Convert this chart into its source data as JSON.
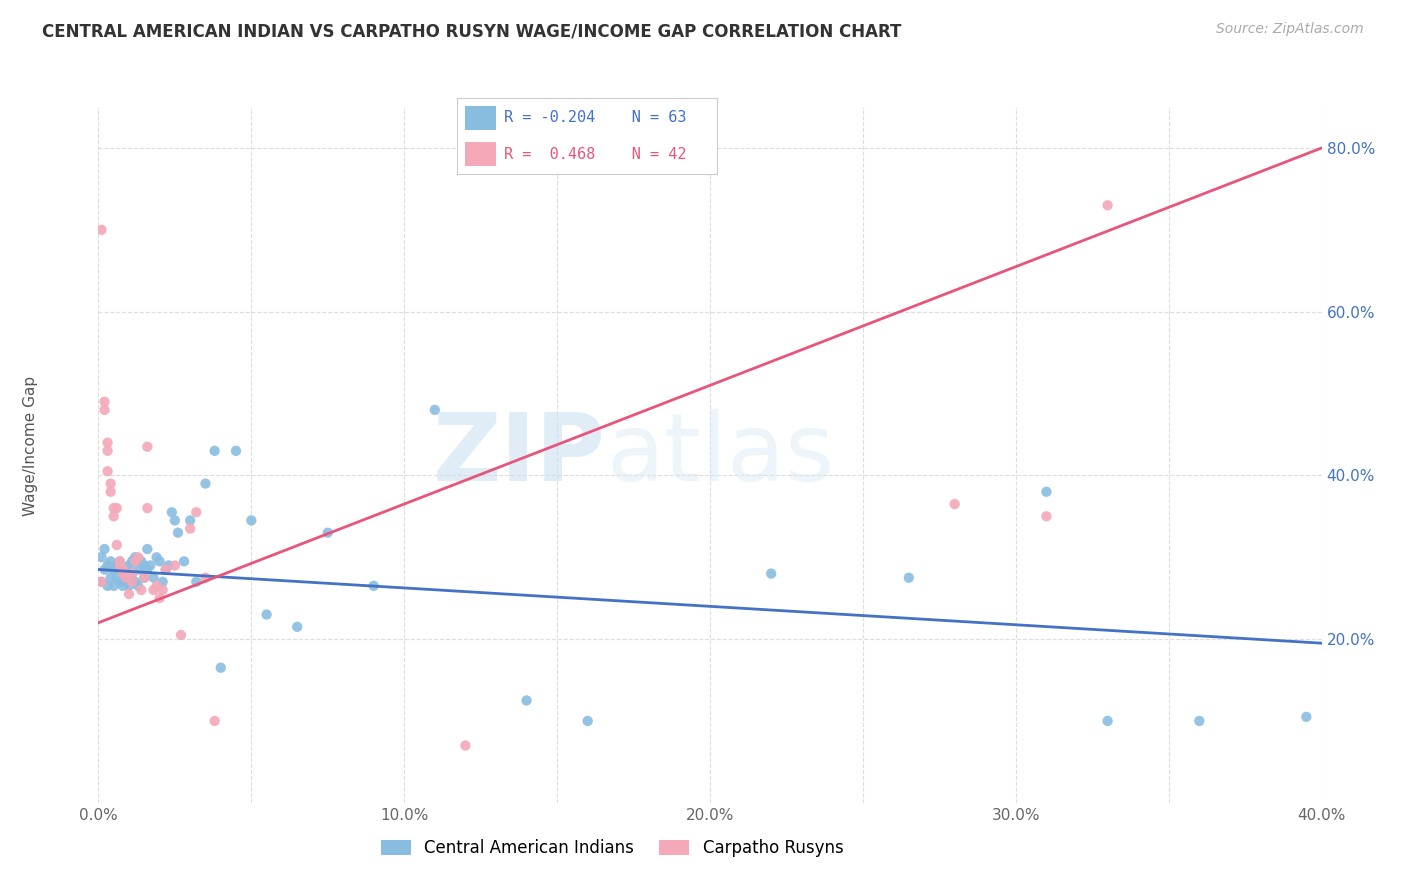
{
  "title": "CENTRAL AMERICAN INDIAN VS CARPATHO RUSYN WAGE/INCOME GAP CORRELATION CHART",
  "source": "Source: ZipAtlas.com",
  "ylabel": "Wage/Income Gap",
  "xlim": [
    0.0,
    0.4
  ],
  "ylim": [
    0.0,
    0.85
  ],
  "ytick_right_vals": [
    0.2,
    0.4,
    0.6,
    0.8
  ],
  "blue_color": "#89bde0",
  "pink_color": "#f4a8b8",
  "blue_line_color": "#4472c4",
  "pink_line_color": "#e8557a",
  "R_blue": -0.204,
  "N_blue": 63,
  "R_pink": 0.468,
  "N_pink": 42,
  "legend_labels": [
    "Central American Indians",
    "Carpatho Rusyns"
  ],
  "watermark_zip": "ZIP",
  "watermark_atlas": "atlas",
  "background_color": "#ffffff",
  "blue_line_x0": 0.0,
  "blue_line_y0": 0.285,
  "blue_line_x1": 0.4,
  "blue_line_y1": 0.195,
  "pink_line_x0": 0.0,
  "pink_line_y0": 0.22,
  "pink_line_x1": 0.4,
  "pink_line_y1": 0.8,
  "blue_scatter_x": [
    0.001,
    0.001,
    0.002,
    0.002,
    0.003,
    0.003,
    0.004,
    0.004,
    0.005,
    0.005,
    0.006,
    0.006,
    0.007,
    0.007,
    0.007,
    0.008,
    0.008,
    0.009,
    0.009,
    0.01,
    0.01,
    0.011,
    0.011,
    0.012,
    0.012,
    0.013,
    0.013,
    0.014,
    0.015,
    0.015,
    0.016,
    0.016,
    0.017,
    0.018,
    0.019,
    0.02,
    0.021,
    0.022,
    0.023,
    0.024,
    0.025,
    0.026,
    0.028,
    0.03,
    0.032,
    0.035,
    0.038,
    0.04,
    0.045,
    0.05,
    0.055,
    0.065,
    0.075,
    0.09,
    0.11,
    0.14,
    0.16,
    0.22,
    0.265,
    0.31,
    0.33,
    0.36,
    0.395
  ],
  "blue_scatter_y": [
    0.3,
    0.27,
    0.31,
    0.285,
    0.29,
    0.265,
    0.295,
    0.275,
    0.285,
    0.265,
    0.29,
    0.275,
    0.285,
    0.27,
    0.295,
    0.28,
    0.265,
    0.285,
    0.27,
    0.29,
    0.265,
    0.295,
    0.28,
    0.3,
    0.27,
    0.285,
    0.265,
    0.295,
    0.29,
    0.275,
    0.31,
    0.285,
    0.29,
    0.275,
    0.3,
    0.295,
    0.27,
    0.285,
    0.29,
    0.355,
    0.345,
    0.33,
    0.295,
    0.345,
    0.27,
    0.39,
    0.43,
    0.165,
    0.43,
    0.345,
    0.23,
    0.215,
    0.33,
    0.265,
    0.48,
    0.125,
    0.1,
    0.28,
    0.275,
    0.38,
    0.1,
    0.1,
    0.105
  ],
  "pink_scatter_x": [
    0.001,
    0.001,
    0.002,
    0.002,
    0.003,
    0.003,
    0.003,
    0.004,
    0.004,
    0.005,
    0.005,
    0.006,
    0.006,
    0.007,
    0.007,
    0.008,
    0.008,
    0.009,
    0.01,
    0.011,
    0.011,
    0.012,
    0.013,
    0.014,
    0.015,
    0.016,
    0.016,
    0.018,
    0.019,
    0.02,
    0.021,
    0.022,
    0.025,
    0.027,
    0.03,
    0.032,
    0.035,
    0.038,
    0.12,
    0.28,
    0.31,
    0.33
  ],
  "pink_scatter_y": [
    0.7,
    0.27,
    0.49,
    0.48,
    0.44,
    0.43,
    0.405,
    0.39,
    0.38,
    0.36,
    0.35,
    0.36,
    0.315,
    0.295,
    0.29,
    0.285,
    0.28,
    0.275,
    0.255,
    0.27,
    0.28,
    0.295,
    0.3,
    0.26,
    0.275,
    0.435,
    0.36,
    0.26,
    0.265,
    0.25,
    0.26,
    0.285,
    0.29,
    0.205,
    0.335,
    0.355,
    0.275,
    0.1,
    0.07,
    0.365,
    0.35,
    0.73
  ]
}
